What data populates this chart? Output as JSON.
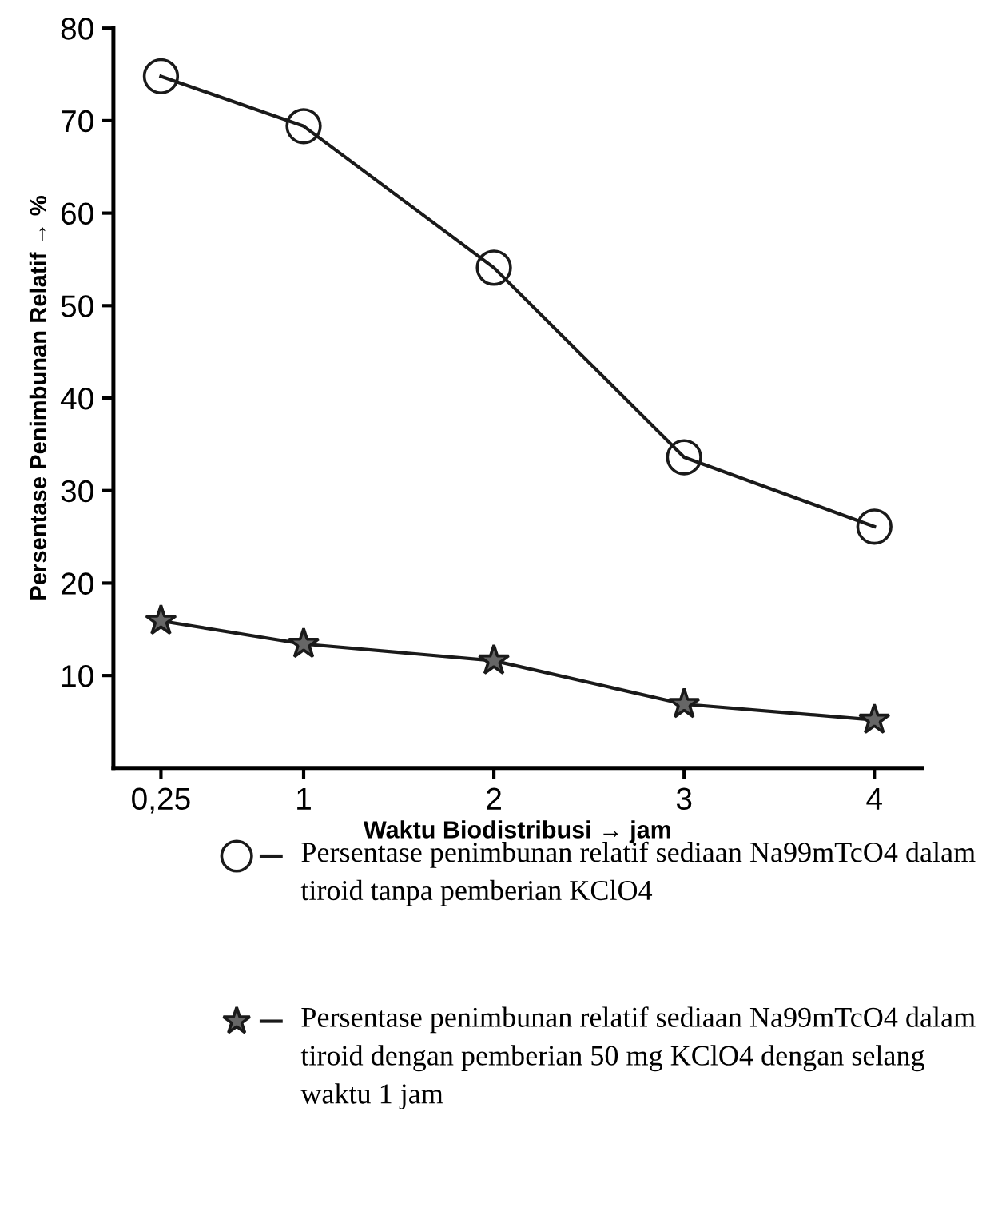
{
  "chart_data": {
    "type": "line",
    "xlabel": "Waktu Biodistribusi → jam",
    "ylabel": "Persentase Penimbunan Relatif → %",
    "x": [
      0.25,
      1,
      2,
      3,
      4
    ],
    "xlim": [
      0,
      4.25
    ],
    "xticks": [
      {
        "value": 0.25,
        "label": "0,25"
      },
      1,
      2,
      3,
      4
    ],
    "ylim": [
      0,
      80
    ],
    "yticks": [
      10,
      20,
      30,
      40,
      50,
      60,
      70,
      80
    ],
    "grid": false,
    "legend": "bottom",
    "line_style": "solid",
    "series": [
      {
        "name": "Persentase penimbunan relatif sediaan Na99mTcO4 dalam tiroid tanpa pemberian KClO4",
        "color": "#1a1a1a",
        "marker": "circle",
        "values": [
          74.8,
          69.4,
          54.1,
          33.6,
          26.1
        ]
      },
      {
        "name": "Persentase penimbunan relatif sediaan Na99mTcO4 dalam tiroid dengan pemberian 50 mg KClO4 dengan selang waktu 1 jam",
        "color": "#1a1a1a",
        "marker": "star",
        "values": [
          15.9,
          13.4,
          11.6,
          6.9,
          5.2
        ]
      }
    ]
  }
}
